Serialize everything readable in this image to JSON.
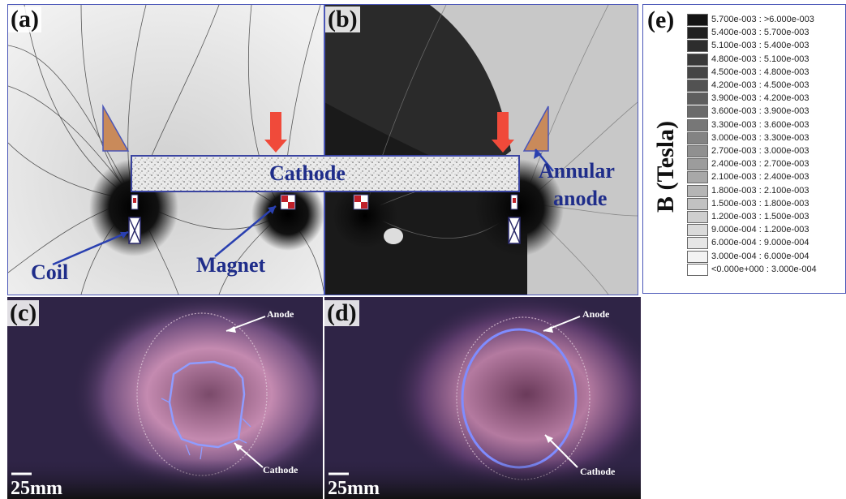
{
  "panels": {
    "a": "(a)",
    "b": "(b)",
    "c": "(c)",
    "d": "(d)",
    "e": "(e)"
  },
  "simulation": {
    "cathode_label": "Cathode",
    "annular_anode_line1": "Annular",
    "annular_anode_line2": "anode",
    "coil_label": "Coil",
    "magnet_label": "Magnet"
  },
  "photos": {
    "anode_label": "Anode",
    "cathode_label": "Cathode",
    "scale_bar": "25mm"
  },
  "legend": {
    "axis_title": "B (Tesla)",
    "entries": [
      "5.700e-003 : >6.000e-003",
      "5.400e-003 : 5.700e-003",
      "5.100e-003 : 5.400e-003",
      "4.800e-003 : 5.100e-003",
      "4.500e-003 : 4.800e-003",
      "4.200e-003 : 4.500e-003",
      "3.900e-003 : 4.200e-003",
      "3.600e-003 : 3.900e-003",
      "3.300e-003 : 3.600e-003",
      "3.000e-003 : 3.300e-003",
      "2.700e-003 : 3.000e-003",
      "2.400e-003 : 2.700e-003",
      "2.100e-003 : 2.400e-003",
      "1.800e-003 : 2.100e-003",
      "1.500e-003 : 1.800e-003",
      "1.200e-003 : 1.500e-003",
      "9.000e-004 : 1.200e-003",
      "6.000e-004 : 9.000e-004",
      "3.000e-004 : 6.000e-004",
      "<0.000e+000 : 3.000e-004"
    ]
  },
  "colors": {
    "label_blue": "#1f2d8a",
    "arrow_red": "#f04a3a",
    "anode_tan": "#c98a5a",
    "photo_bg": "#2a2040",
    "discharge_blue": "#7f8cff"
  }
}
